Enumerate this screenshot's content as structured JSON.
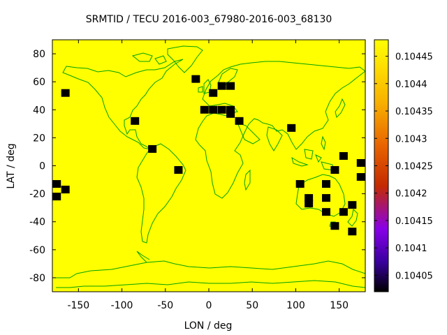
{
  "title": "SRMTID / TECU 2016-003_67980-2016-003_68130",
  "chart_data": {
    "type": "heatmap",
    "title": "SRMTID / TECU 2016-003_67980-2016-003_68130",
    "xlabel": "LON / deg",
    "ylabel": "LAT / deg",
    "xlim": [
      -180,
      180
    ],
    "ylim": [
      -90,
      90
    ],
    "xticks": [
      -150,
      -100,
      -50,
      0,
      50,
      100,
      150
    ],
    "yticks": [
      -80,
      -60,
      -40,
      -20,
      0,
      20,
      40,
      60,
      80
    ],
    "background_color": "#ffff00",
    "coastline_color": "#00a000",
    "marker_color": "#000000",
    "colorbar": {
      "min": 0.10402,
      "max": 0.10448,
      "ticks": [
        0.10405,
        0.1041,
        0.10415,
        0.1042,
        0.10425,
        0.1043,
        0.10435,
        0.1044,
        0.10445
      ],
      "colormap": [
        "#000000",
        "#3a00a0",
        "#8800e8",
        "#c42a00",
        "#e86400",
        "#f8b000",
        "#ffe000",
        "#ffff00"
      ]
    },
    "cells": [
      {
        "lon": -165,
        "lat": 52
      },
      {
        "lon": -85,
        "lat": 32
      },
      {
        "lon": -65,
        "lat": 12
      },
      {
        "lon": -35,
        "lat": -3
      },
      {
        "lon": -15,
        "lat": 62
      },
      {
        "lon": -5,
        "lat": 40
      },
      {
        "lon": 5,
        "lat": 52
      },
      {
        "lon": 5,
        "lat": 40
      },
      {
        "lon": 15,
        "lat": 57
      },
      {
        "lon": 15,
        "lat": 40
      },
      {
        "lon": 25,
        "lat": 57
      },
      {
        "lon": 25,
        "lat": 40
      },
      {
        "lon": 25,
        "lat": 37
      },
      {
        "lon": 35,
        "lat": 32
      },
      {
        "lon": 95,
        "lat": 27
      },
      {
        "lon": 105,
        "lat": -13
      },
      {
        "lon": 115,
        "lat": -23
      },
      {
        "lon": 115,
        "lat": -27
      },
      {
        "lon": 135,
        "lat": -13
      },
      {
        "lon": 135,
        "lat": -23
      },
      {
        "lon": 135,
        "lat": -33
      },
      {
        "lon": 145,
        "lat": -3
      },
      {
        "lon": 145,
        "lat": -43
      },
      {
        "lon": 155,
        "lat": 7
      },
      {
        "lon": 155,
        "lat": -33
      },
      {
        "lon": 165,
        "lat": -28
      },
      {
        "lon": 165,
        "lat": -47
      },
      {
        "lon": 175,
        "lat": 2
      },
      {
        "lon": 175,
        "lat": -8
      },
      {
        "lon": -175,
        "lat": -13
      },
      {
        "lon": -175,
        "lat": -22
      },
      {
        "lon": -165,
        "lat": -17
      }
    ]
  }
}
